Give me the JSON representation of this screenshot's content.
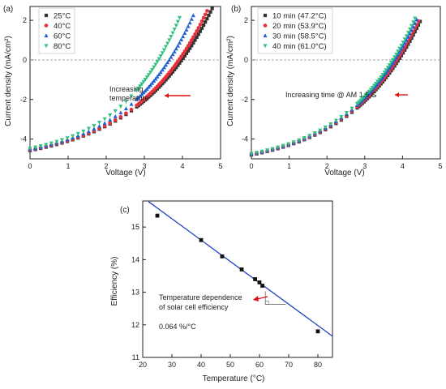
{
  "chart_data": [
    {
      "type": "scatter",
      "panel_label": "(a)",
      "xlabel": "Voltage (V)",
      "ylabel": "Current density (mA/cm²)",
      "xlim": [
        0,
        5
      ],
      "ylim": [
        -5,
        2.7
      ],
      "xticks": [
        "0",
        "1",
        "2",
        "3",
        "4",
        "5"
      ],
      "yticks": [
        "-4",
        "-2",
        "0",
        "2"
      ],
      "zero_line": true,
      "legend_position": "top-left",
      "series": [
        {
          "name": "25°C",
          "color": "#333333",
          "marker": "square",
          "isc": -4.58,
          "voc": 4.4,
          "vmax": 4.78,
          "jmax": 2.6
        },
        {
          "name": "40°C",
          "color": "#e8303a",
          "marker": "circle",
          "isc": -4.55,
          "voc": 4.2,
          "vmax": 4.65,
          "jmax": 2.5
        },
        {
          "name": "60°C",
          "color": "#1f5fd4",
          "marker": "triangle-up",
          "isc": -4.52,
          "voc": 3.85,
          "vmax": 4.32,
          "jmax": 2.4
        },
        {
          "name": "80°C",
          "color": "#2ec27e",
          "marker": "triangle-down",
          "isc": -4.47,
          "voc": 3.5,
          "vmax": 3.95,
          "jmax": 2.25
        }
      ],
      "annotation": {
        "lines": [
          "Increasing",
          "temperature"
        ]
      }
    },
    {
      "type": "scatter",
      "panel_label": "(b)",
      "xlabel": "Voltage (V)",
      "ylabel": "Current density (mA/cm²)",
      "xlim": [
        0,
        5
      ],
      "ylim": [
        -5,
        2.7
      ],
      "xticks": [
        "0",
        "1",
        "2",
        "3",
        "4",
        "5"
      ],
      "yticks": [
        "-4",
        "-2",
        "0",
        "2"
      ],
      "zero_line": true,
      "legend_position": "top-left",
      "series": [
        {
          "name": "10 min (47.2°C)",
          "color": "#333333",
          "marker": "square",
          "isc": -4.8,
          "voc": 4.15,
          "vmax": 4.48,
          "jmax": 2.0
        },
        {
          "name": "20 min (53.9°C)",
          "color": "#e8303a",
          "marker": "circle",
          "isc": -4.78,
          "voc": 4.08,
          "vmax": 4.43,
          "jmax": 2.0
        },
        {
          "name": "30 min (58.5°C)",
          "color": "#1f5fd4",
          "marker": "triangle-up",
          "isc": -4.76,
          "voc": 4.02,
          "vmax": 4.38,
          "jmax": 2.05
        },
        {
          "name": "40 min (61.0°C)",
          "color": "#2ec27e",
          "marker": "triangle-down",
          "isc": -4.74,
          "voc": 3.96,
          "vmax": 4.33,
          "jmax": 2.1
        }
      ],
      "annotation": {
        "lines": [
          "Increasing time @ AM 1.5 G"
        ]
      }
    },
    {
      "type": "scatter",
      "panel_label": "(c)",
      "xlabel": "Temperature (°C)",
      "ylabel": "Efficiency (%)",
      "xlim": [
        20,
        85
      ],
      "ylim": [
        11,
        15.8
      ],
      "xticks": [
        "20",
        "30",
        "40",
        "50",
        "60",
        "70",
        "80"
      ],
      "yticks": [
        "11",
        "12",
        "13",
        "14",
        "15"
      ],
      "points": [
        {
          "x": 25,
          "y": 15.35
        },
        {
          "x": 40,
          "y": 14.6
        },
        {
          "x": 47.2,
          "y": 14.1
        },
        {
          "x": 53.9,
          "y": 13.7
        },
        {
          "x": 58.5,
          "y": 13.4
        },
        {
          "x": 60,
          "y": 13.3
        },
        {
          "x": 61,
          "y": 13.2
        },
        {
          "x": 80,
          "y": 11.8
        }
      ],
      "fit_line": {
        "x": [
          22,
          85
        ],
        "y": [
          15.78,
          11.65
        ],
        "color": "#1f3fbf"
      },
      "annotation": {
        "lines": [
          "Temperature dependence",
          "of solar cell efficiency"
        ],
        "slope_text": "0.064 %/°C"
      }
    }
  ]
}
